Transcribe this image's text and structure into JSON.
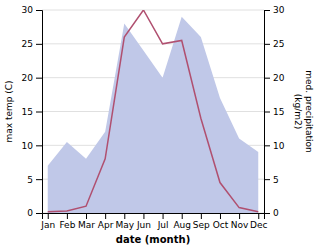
{
  "chart_data": {
    "type": "line",
    "categories": [
      "Jan",
      "Feb",
      "Mar",
      "Apr",
      "May",
      "Jun",
      "Jul",
      "Aug",
      "Sep",
      "Oct",
      "Nov",
      "Dec"
    ],
    "xlabel": "date (month)",
    "ylabel": "max temp (C)",
    "y2label": "med. precipitation\n(kg/m2)",
    "ylim": [
      0,
      30
    ],
    "yticks": [
      0,
      5,
      10,
      15,
      20,
      25,
      30
    ],
    "y2lim": [
      0,
      30
    ],
    "y2ticks": [
      0,
      5,
      10,
      15,
      20,
      25,
      30
    ],
    "grid": true,
    "series": [
      {
        "type": "area",
        "axis": "y2",
        "color": "#c0c8e8",
        "values": [
          7.0,
          10.5,
          8.0,
          12.0,
          28.0,
          24.0,
          20.0,
          29.0,
          26.0,
          17.0,
          11.0,
          9.0
        ]
      },
      {
        "type": "line",
        "color": "#b05070",
        "values": [
          0.2,
          0.3,
          1.0,
          8.0,
          26.0,
          30.0,
          25.0,
          25.5,
          14.0,
          4.5,
          0.8,
          0.2
        ]
      }
    ]
  }
}
